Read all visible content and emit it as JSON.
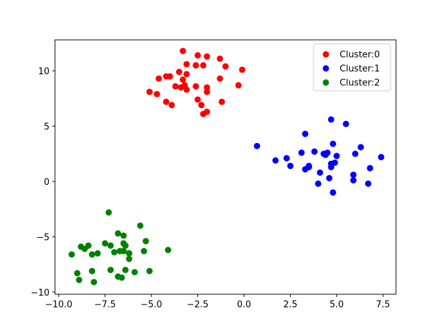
{
  "chart_data": {
    "type": "scatter",
    "title": "",
    "xlabel": "",
    "ylabel": "",
    "xlim": [
      -10.2,
      8.2
    ],
    "ylim": [
      -10.2,
      12.8
    ],
    "xticks": [
      -10.0,
      -7.5,
      -5.0,
      -2.5,
      0.0,
      2.5,
      5.0,
      7.5
    ],
    "xtick_labels": [
      "−10.0",
      "−7.5",
      "−5.0",
      "−2.5",
      "0.0",
      "2.5",
      "5.0",
      "7.5"
    ],
    "yticks": [
      -10,
      -5,
      0,
      5,
      10
    ],
    "ytick_labels": [
      "−10",
      "−5",
      "0",
      "5",
      "10"
    ],
    "grid": false,
    "legend_position": "top-right",
    "series": [
      {
        "name": "Cluster:0",
        "color": "#ff0000",
        "points": [
          [
            -3.3,
            11.8
          ],
          [
            -2.5,
            11.4
          ],
          [
            -2.0,
            11.3
          ],
          [
            -1.3,
            11.1
          ],
          [
            -3.1,
            10.6
          ],
          [
            -2.6,
            10.5
          ],
          [
            -2.2,
            10.5
          ],
          [
            -1.0,
            10.4
          ],
          [
            -0.1,
            10.1
          ],
          [
            -3.5,
            9.9
          ],
          [
            -3.1,
            9.7
          ],
          [
            -4.2,
            9.5
          ],
          [
            -4.0,
            9.5
          ],
          [
            -4.6,
            9.3
          ],
          [
            -3.3,
            9.2
          ],
          [
            -1.3,
            9.3
          ],
          [
            -3.2,
            8.7
          ],
          [
            -3.7,
            8.6
          ],
          [
            -3.4,
            8.5
          ],
          [
            -2.6,
            8.6
          ],
          [
            -2.0,
            8.5
          ],
          [
            -0.3,
            8.7
          ],
          [
            -3.1,
            8.3
          ],
          [
            -2.0,
            8.1
          ],
          [
            -5.1,
            8.1
          ],
          [
            -4.7,
            7.9
          ],
          [
            -2.5,
            7.4
          ],
          [
            -1.2,
            7.2
          ],
          [
            -4.2,
            7.2
          ],
          [
            -3.9,
            6.9
          ],
          [
            -2.3,
            6.9
          ],
          [
            -2.0,
            6.3
          ],
          [
            -2.2,
            6.1
          ]
        ]
      },
      {
        "name": "Cluster:1",
        "color": "#0000ff",
        "points": [
          [
            4.7,
            5.6
          ],
          [
            5.5,
            5.2
          ],
          [
            3.3,
            4.3
          ],
          [
            0.7,
            3.2
          ],
          [
            6.3,
            3.1
          ],
          [
            4.8,
            3.4
          ],
          [
            3.1,
            2.6
          ],
          [
            3.8,
            2.7
          ],
          [
            4.3,
            2.5
          ],
          [
            4.5,
            2.6
          ],
          [
            4.4,
            2.4
          ],
          [
            6.0,
            2.5
          ],
          [
            7.4,
            2.2
          ],
          [
            2.3,
            2.1
          ],
          [
            1.7,
            1.9
          ],
          [
            5.0,
            2.3
          ],
          [
            4.9,
            1.7
          ],
          [
            4.7,
            1.6
          ],
          [
            4.7,
            1.3
          ],
          [
            2.5,
            1.4
          ],
          [
            3.5,
            1.4
          ],
          [
            3.3,
            1.1
          ],
          [
            3.5,
            1.3
          ],
          [
            6.8,
            1.2
          ],
          [
            4.1,
            0.8
          ],
          [
            5.9,
            0.6
          ],
          [
            4.6,
            0.3
          ],
          [
            5.9,
            0.1
          ],
          [
            4.0,
            -0.2
          ],
          [
            6.7,
            -0.2
          ],
          [
            4.8,
            -1.0
          ]
        ]
      },
      {
        "name": "Cluster:2",
        "color": "#008000",
        "points": [
          [
            -7.3,
            -2.8
          ],
          [
            -5.6,
            -4.0
          ],
          [
            -6.8,
            -4.7
          ],
          [
            -6.5,
            -4.9
          ],
          [
            -5.3,
            -5.4
          ],
          [
            -7.5,
            -5.6
          ],
          [
            -6.5,
            -5.6
          ],
          [
            -8.4,
            -5.8
          ],
          [
            -8.8,
            -5.9
          ],
          [
            -7.2,
            -5.8
          ],
          [
            -6.4,
            -5.8
          ],
          [
            -8.6,
            -6.1
          ],
          [
            -6.7,
            -6.3
          ],
          [
            -7.0,
            -6.4
          ],
          [
            -6.5,
            -6.3
          ],
          [
            -6.2,
            -6.5
          ],
          [
            -5.4,
            -6.3
          ],
          [
            -4.1,
            -6.2
          ],
          [
            -7.9,
            -6.5
          ],
          [
            -8.2,
            -6.6
          ],
          [
            -9.3,
            -6.6
          ],
          [
            -6.2,
            -7.0
          ],
          [
            -7.2,
            -8.0
          ],
          [
            -6.4,
            -8.0
          ],
          [
            -8.2,
            -8.1
          ],
          [
            -5.1,
            -8.1
          ],
          [
            -5.9,
            -8.2
          ],
          [
            -9.0,
            -8.3
          ],
          [
            -6.8,
            -8.6
          ],
          [
            -6.6,
            -8.7
          ],
          [
            -8.9,
            -8.9
          ],
          [
            -8.1,
            -9.1
          ]
        ]
      }
    ]
  }
}
